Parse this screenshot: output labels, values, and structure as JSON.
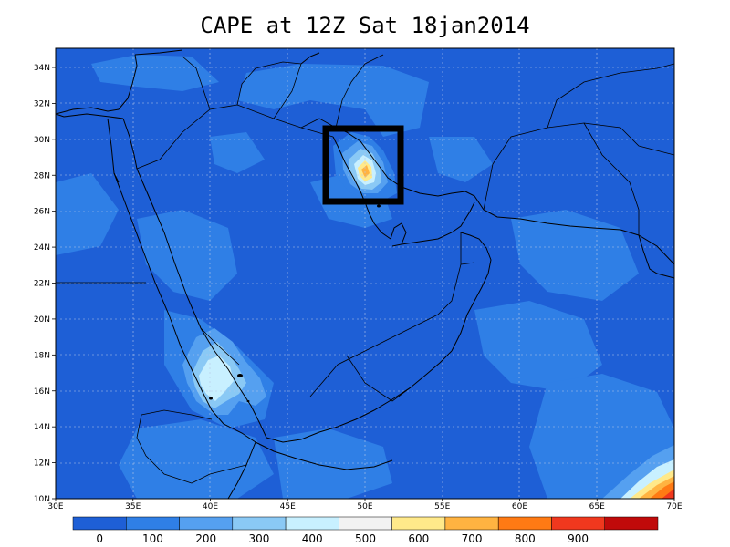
{
  "title": "CAPE at 12Z Sat 18jan2014",
  "lat_ticks": [
    "10N",
    "12N",
    "14N",
    "16N",
    "18N",
    "20N",
    "22N",
    "24N",
    "26N",
    "28N",
    "30N",
    "32N",
    "34N"
  ],
  "lon_ticks": [
    "30E",
    "35E",
    "40E",
    "45E",
    "50E",
    "55E",
    "60E",
    "65E",
    "70E"
  ],
  "colorbar": {
    "colors": [
      "#1e5fd6",
      "#2f7fe6",
      "#55a0f0",
      "#8ac9f5",
      "#c8f0ff",
      "#f2f2f2",
      "#ffe98a",
      "#ffb341",
      "#ff7a14",
      "#f0381e",
      "#c00a0a"
    ],
    "labels": [
      "0",
      "100",
      "200",
      "300",
      "400",
      "500",
      "600",
      "700",
      "800",
      "900"
    ]
  },
  "colors": {
    "background_field": "#1e5fd6",
    "field_level_1": "#2f7fe6",
    "field_level_2": "#55a0f0",
    "field_level_3": "#8ac9f5",
    "field_level_4": "#c8f0ff",
    "coastline": "#000000"
  }
}
